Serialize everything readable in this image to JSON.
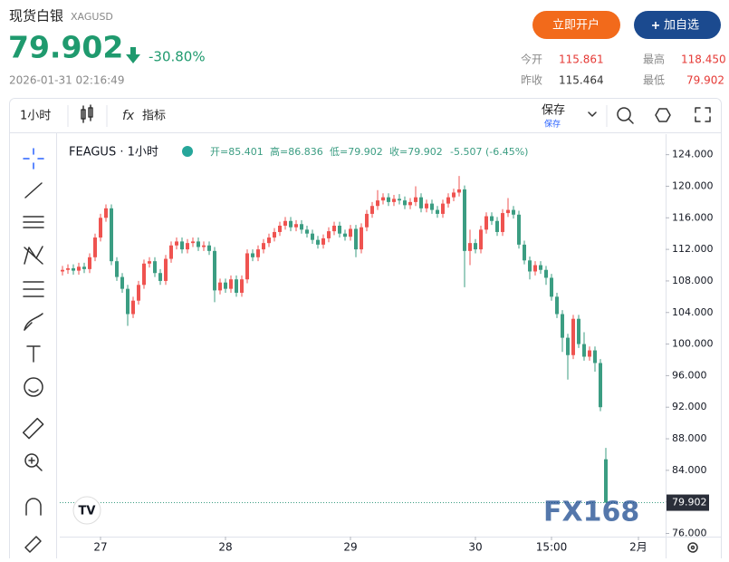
{
  "header": {
    "title": "现货白银",
    "symbol": "XAGUSD",
    "price": "79.902",
    "change": "-30.80%",
    "datetime": "2026-01-31 02:16:49",
    "buttons": [
      "立即开户",
      "加自选"
    ]
  },
  "stats": [
    {
      "label": "今开",
      "value": "115.861"
    },
    {
      "label": "最高",
      "value": "118.450"
    },
    {
      "label": "昨收",
      "value": "115.464"
    },
    {
      "label": "最低",
      "value": "79.902"
    }
  ],
  "toolbar": {
    "interval": "1小时",
    "indicators": "指标",
    "save": "保存",
    "save_sub": "保存"
  },
  "legend": {
    "name": "FEAGUS · 1小时",
    "open": "开=85.401",
    "high": "高=86.836",
    "low": "低=79.902",
    "close": "收=79.902",
    "change": "-5.507 (-6.45%)"
  },
  "watermark": "FX168",
  "chart_data": {
    "type": "candlestick",
    "up_color": "#ef5350",
    "down_color": "#3b9d82",
    "grid": false,
    "ylim": [
      75.6,
      126.6
    ],
    "xlim": [
      -0.5,
      111
    ],
    "yticks": [
      {
        "value": 76,
        "label": "76.000"
      },
      {
        "value": 80,
        "label": "80.000"
      },
      {
        "value": 84,
        "label": "84.000"
      },
      {
        "value": 88,
        "label": "88.000"
      },
      {
        "value": 92,
        "label": "92.000"
      },
      {
        "value": 96,
        "label": "96.000"
      },
      {
        "value": 100,
        "label": "100.000"
      },
      {
        "value": 104,
        "label": "104.000"
      },
      {
        "value": 108,
        "label": "108.000"
      },
      {
        "value": 112,
        "label": "112.000"
      },
      {
        "value": 116,
        "label": "116.000"
      },
      {
        "value": 120,
        "label": "120.000"
      },
      {
        "value": 124,
        "label": "124.000"
      }
    ],
    "xticks": [
      {
        "value": 7,
        "label": "27"
      },
      {
        "value": 30,
        "label": "28"
      },
      {
        "value": 53,
        "label": "29"
      },
      {
        "value": 76,
        "label": "30"
      },
      {
        "value": 90,
        "label": "15:00"
      },
      {
        "value": 106,
        "label": "2月"
      }
    ],
    "last_price": 79.902,
    "ohlc": [
      [
        109.2,
        109.9,
        108.7,
        109.4
      ],
      [
        109.4,
        110.1,
        108.9,
        109.6
      ],
      [
        109.6,
        110.1,
        108.8,
        109.3
      ],
      [
        109.3,
        110.3,
        108.8,
        109.8
      ],
      [
        109.8,
        110.3,
        109.0,
        109.5
      ],
      [
        109.5,
        111.5,
        109.0,
        111.0
      ],
      [
        111.0,
        114.0,
        110.5,
        113.5
      ],
      [
        113.5,
        116.5,
        113.0,
        116.0
      ],
      [
        116.0,
        117.7,
        115.5,
        117.2
      ],
      [
        117.2,
        117.7,
        110.0,
        110.5
      ],
      [
        110.5,
        111.0,
        108.0,
        108.5
      ],
      [
        108.5,
        109.0,
        106.5,
        107.0
      ],
      [
        107.0,
        107.5,
        102.3,
        103.8
      ],
      [
        103.8,
        106.0,
        103.3,
        105.5
      ],
      [
        105.5,
        108.0,
        105.0,
        107.5
      ],
      [
        107.5,
        110.7,
        107.0,
        110.2
      ],
      [
        110.2,
        111.0,
        109.7,
        110.5
      ],
      [
        110.5,
        111.0,
        108.5,
        109.0
      ],
      [
        109.0,
        109.5,
        107.5,
        108.0
      ],
      [
        108.0,
        111.3,
        107.5,
        110.8
      ],
      [
        110.8,
        113.0,
        110.3,
        112.5
      ],
      [
        112.5,
        113.5,
        112.0,
        113.0
      ],
      [
        113.0,
        113.5,
        111.5,
        112.0
      ],
      [
        112.0,
        113.3,
        111.5,
        112.8
      ],
      [
        112.8,
        113.5,
        112.3,
        113.0
      ],
      [
        113.0,
        113.5,
        111.8,
        112.3
      ],
      [
        112.3,
        113.0,
        111.8,
        112.5
      ],
      [
        112.5,
        113.0,
        111.3,
        111.8
      ],
      [
        111.8,
        112.3,
        105.3,
        106.8
      ],
      [
        106.8,
        108.3,
        106.3,
        107.8
      ],
      [
        107.8,
        108.3,
        106.5,
        107.0
      ],
      [
        107.0,
        108.7,
        106.5,
        108.2
      ],
      [
        108.2,
        108.7,
        106.0,
        106.5
      ],
      [
        106.5,
        108.7,
        106.0,
        108.2
      ],
      [
        108.2,
        112.0,
        107.7,
        111.5
      ],
      [
        111.5,
        112.0,
        110.5,
        111.0
      ],
      [
        111.0,
        112.5,
        110.5,
        112.0
      ],
      [
        112.0,
        113.3,
        111.5,
        112.8
      ],
      [
        112.8,
        114.0,
        112.3,
        113.5
      ],
      [
        113.5,
        114.7,
        113.0,
        114.2
      ],
      [
        114.2,
        115.5,
        113.7,
        115.0
      ],
      [
        115.0,
        116.1,
        114.5,
        115.6
      ],
      [
        115.6,
        116.1,
        114.3,
        114.8
      ],
      [
        114.8,
        115.7,
        114.3,
        115.2
      ],
      [
        115.2,
        115.7,
        114.0,
        114.5
      ],
      [
        114.5,
        115.0,
        113.5,
        114.0
      ],
      [
        114.0,
        114.5,
        112.7,
        113.2
      ],
      [
        113.2,
        113.7,
        112.1,
        112.6
      ],
      [
        112.6,
        113.9,
        112.1,
        113.4
      ],
      [
        113.4,
        114.8,
        112.9,
        114.3
      ],
      [
        114.3,
        115.5,
        113.8,
        115.0
      ],
      [
        115.0,
        115.5,
        113.5,
        114.0
      ],
      [
        114.0,
        114.5,
        113.1,
        113.6
      ],
      [
        113.6,
        115.1,
        113.1,
        114.6
      ],
      [
        114.6,
        115.1,
        111.0,
        112.0
      ],
      [
        112.0,
        115.3,
        111.5,
        114.8
      ],
      [
        114.8,
        117.0,
        114.3,
        116.5
      ],
      [
        116.5,
        118.0,
        116.0,
        117.5
      ],
      [
        117.5,
        119.5,
        117.0,
        118.2
      ],
      [
        118.2,
        119.1,
        117.7,
        118.6
      ],
      [
        118.6,
        119.1,
        117.5,
        118.0
      ],
      [
        118.0,
        118.9,
        117.5,
        118.4
      ],
      [
        118.4,
        119.0,
        117.7,
        118.2
      ],
      [
        118.2,
        118.7,
        117.1,
        117.6
      ],
      [
        117.6,
        118.5,
        117.1,
        118.0
      ],
      [
        118.0,
        120.0,
        117.5,
        118.6
      ],
      [
        118.6,
        119.1,
        116.7,
        117.2
      ],
      [
        117.2,
        118.3,
        116.7,
        117.8
      ],
      [
        117.8,
        118.3,
        116.5,
        117.0
      ],
      [
        117.0,
        117.5,
        116.0,
        116.5
      ],
      [
        116.5,
        118.3,
        116.0,
        117.8
      ],
      [
        117.8,
        119.1,
        117.3,
        118.6
      ],
      [
        118.6,
        119.7,
        118.1,
        119.2
      ],
      [
        119.2,
        121.3,
        118.7,
        119.6
      ],
      [
        119.6,
        120.1,
        107.2,
        111.8
      ],
      [
        111.8,
        114.5,
        110.0,
        112.8
      ],
      [
        112.8,
        113.3,
        111.5,
        112.0
      ],
      [
        112.0,
        115.0,
        111.5,
        114.5
      ],
      [
        114.5,
        116.7,
        114.0,
        116.2
      ],
      [
        116.2,
        116.7,
        115.1,
        115.6
      ],
      [
        115.6,
        116.1,
        113.7,
        114.2
      ],
      [
        114.2,
        117.1,
        113.7,
        116.6
      ],
      [
        116.6,
        118.5,
        116.1,
        117.0
      ],
      [
        117.0,
        117.5,
        115.9,
        116.4
      ],
      [
        116.4,
        116.9,
        112.1,
        112.6
      ],
      [
        112.6,
        113.1,
        110.1,
        110.6
      ],
      [
        110.6,
        111.1,
        108.2,
        109.2
      ],
      [
        109.2,
        110.5,
        108.7,
        110.0
      ],
      [
        110.0,
        110.5,
        108.9,
        109.4
      ],
      [
        109.4,
        109.9,
        107.5,
        108.4
      ],
      [
        108.4,
        108.9,
        105.5,
        106.0
      ],
      [
        106.0,
        106.5,
        103.3,
        103.8
      ],
      [
        103.8,
        104.3,
        99.0,
        100.8
      ],
      [
        100.8,
        101.3,
        95.5,
        98.6
      ],
      [
        98.6,
        103.7,
        98.1,
        103.2
      ],
      [
        103.2,
        103.7,
        99.5,
        100.0
      ],
      [
        100.0,
        101.5,
        97.9,
        98.4
      ],
      [
        98.4,
        99.7,
        97.9,
        99.2
      ],
      [
        99.2,
        99.7,
        96.5,
        97.6
      ],
      [
        97.6,
        98.1,
        91.5,
        92.0
      ],
      [
        85.401,
        86.836,
        79.902,
        79.902
      ]
    ]
  }
}
